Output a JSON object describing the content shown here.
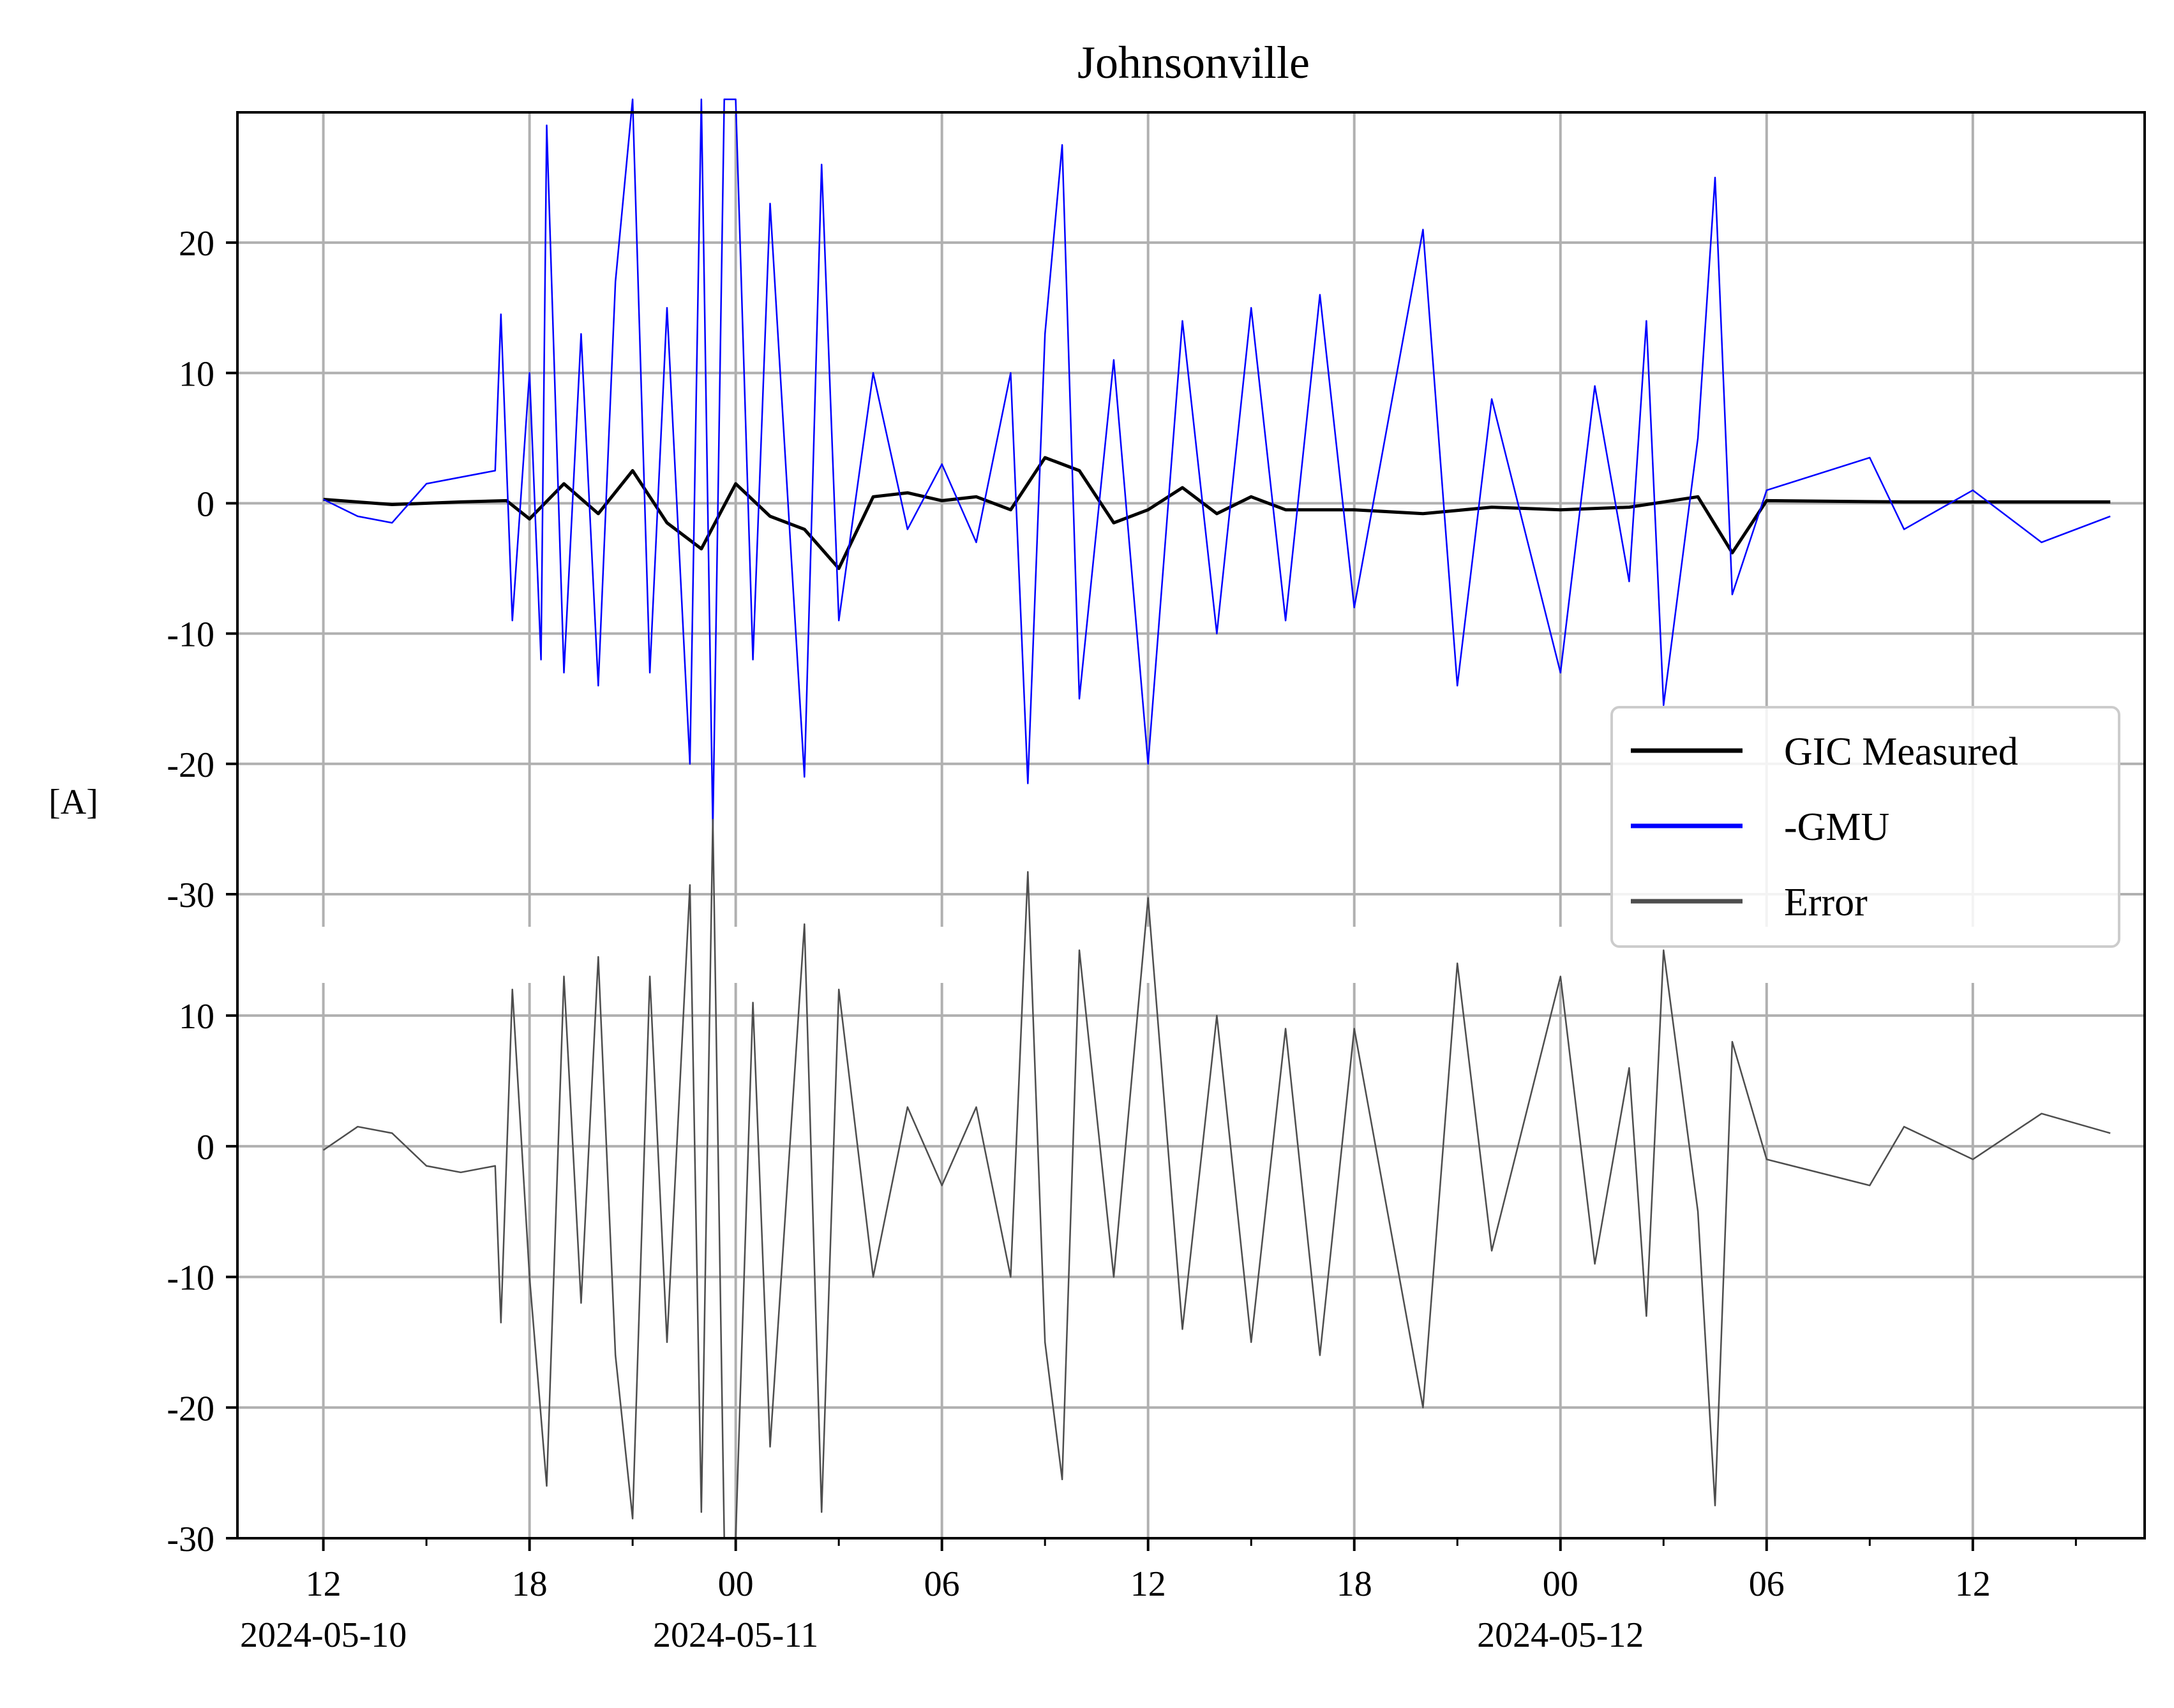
{
  "chart_data": {
    "type": "line",
    "title": "Johnsonville",
    "ylabel": "[A]",
    "xlabel": "",
    "x_range": [
      "2024-05-10T09:30",
      "2024-05-12T17:00"
    ],
    "x_ticks": [
      {
        "t": "2024-05-10T12:00",
        "label": "12",
        "date": "2024-05-10"
      },
      {
        "t": "2024-05-10T18:00",
        "label": "18",
        "date": ""
      },
      {
        "t": "2024-05-11T00:00",
        "label": "00",
        "date": "2024-05-11"
      },
      {
        "t": "2024-05-11T06:00",
        "label": "06",
        "date": ""
      },
      {
        "t": "2024-05-11T12:00",
        "label": "12",
        "date": ""
      },
      {
        "t": "2024-05-11T18:00",
        "label": "18",
        "date": ""
      },
      {
        "t": "2024-05-12T00:00",
        "label": "00",
        "date": "2024-05-12"
      },
      {
        "t": "2024-05-12T06:00",
        "label": "06",
        "date": ""
      },
      {
        "t": "2024-05-12T12:00",
        "label": "12",
        "date": ""
      }
    ],
    "minor_ticks_hours": 3,
    "panels": [
      {
        "name": "upper",
        "ylim": [
          -32.5,
          30
        ],
        "yticks": [
          20,
          10,
          0,
          -10,
          -20,
          -30
        ],
        "ytick_labels": [
          "20",
          "10",
          "0",
          "-10",
          "-20",
          "-30"
        ],
        "series": [
          {
            "name": "GIC Measured",
            "color": "#000000",
            "points": [
              [
                "2024-05-10T12:00",
                0.3
              ],
              [
                "2024-05-10T14:00",
                -0.1
              ],
              [
                "2024-05-10T16:00",
                0.1
              ],
              [
                "2024-05-10T17:20",
                0.2
              ],
              [
                "2024-05-10T18:00",
                -1.2
              ],
              [
                "2024-05-10T19:00",
                1.5
              ],
              [
                "2024-05-10T20:00",
                -0.8
              ],
              [
                "2024-05-10T21:00",
                2.5
              ],
              [
                "2024-05-10T22:00",
                -1.5
              ],
              [
                "2024-05-10T23:00",
                -3.5
              ],
              [
                "2024-05-11T00:00",
                1.5
              ],
              [
                "2024-05-11T01:00",
                -1.0
              ],
              [
                "2024-05-11T02:00",
                -2.0
              ],
              [
                "2024-05-11T03:00",
                -5.0
              ],
              [
                "2024-05-11T04:00",
                0.5
              ],
              [
                "2024-05-11T05:00",
                0.8
              ],
              [
                "2024-05-11T06:00",
                0.2
              ],
              [
                "2024-05-11T07:00",
                0.5
              ],
              [
                "2024-05-11T08:00",
                -0.5
              ],
              [
                "2024-05-11T09:00",
                3.5
              ],
              [
                "2024-05-11T10:00",
                2.5
              ],
              [
                "2024-05-11T11:00",
                -1.5
              ],
              [
                "2024-05-11T12:00",
                -0.5
              ],
              [
                "2024-05-11T13:00",
                1.2
              ],
              [
                "2024-05-11T14:00",
                -0.8
              ],
              [
                "2024-05-11T15:00",
                0.5
              ],
              [
                "2024-05-11T16:00",
                -0.5
              ],
              [
                "2024-05-11T18:00",
                -0.5
              ],
              [
                "2024-05-11T20:00",
                -0.8
              ],
              [
                "2024-05-11T22:00",
                -0.3
              ],
              [
                "2024-05-12T00:00",
                -0.5
              ],
              [
                "2024-05-12T02:00",
                -0.3
              ],
              [
                "2024-05-12T04:00",
                0.5
              ],
              [
                "2024-05-12T05:00",
                -3.8
              ],
              [
                "2024-05-12T06:00",
                0.2
              ],
              [
                "2024-05-12T10:00",
                0.1
              ],
              [
                "2024-05-12T14:00",
                0.1
              ],
              [
                "2024-05-12T16:00",
                0.1
              ]
            ]
          },
          {
            "name": "-GMU",
            "color": "#0000ff",
            "points": [
              [
                "2024-05-10T12:00",
                0.3
              ],
              [
                "2024-05-10T13:00",
                -1.0
              ],
              [
                "2024-05-10T14:00",
                -1.5
              ],
              [
                "2024-05-10T15:00",
                1.5
              ],
              [
                "2024-05-10T16:00",
                2.0
              ],
              [
                "2024-05-10T17:00",
                2.5
              ],
              [
                "2024-05-10T17:10",
                14.5
              ],
              [
                "2024-05-10T17:30",
                -9.0
              ],
              [
                "2024-05-10T18:00",
                10.0
              ],
              [
                "2024-05-10T18:20",
                -12.0
              ],
              [
                "2024-05-10T18:30",
                29.0
              ],
              [
                "2024-05-10T19:00",
                -13.0
              ],
              [
                "2024-05-10T19:30",
                13.0
              ],
              [
                "2024-05-10T20:00",
                -14.0
              ],
              [
                "2024-05-10T20:30",
                17.0
              ],
              [
                "2024-05-10T21:00",
                31.0
              ],
              [
                "2024-05-10T21:30",
                -13.0
              ],
              [
                "2024-05-10T22:00",
                15.0
              ],
              [
                "2024-05-10T22:40",
                -20.0
              ],
              [
                "2024-05-10T23:00",
                31.0
              ],
              [
                "2024-05-10T23:20",
                -25.0
              ],
              [
                "2024-05-10T23:40",
                31.0
              ],
              [
                "2024-05-11T00:00",
                31.0
              ],
              [
                "2024-05-11T00:30",
                -12.0
              ],
              [
                "2024-05-11T01:00",
                23.0
              ],
              [
                "2024-05-11T02:00",
                -21.0
              ],
              [
                "2024-05-11T02:30",
                26.0
              ],
              [
                "2024-05-11T03:00",
                -9.0
              ],
              [
                "2024-05-11T04:00",
                10.0
              ],
              [
                "2024-05-11T05:00",
                -2.0
              ],
              [
                "2024-05-11T06:00",
                3.0
              ],
              [
                "2024-05-11T07:00",
                -3.0
              ],
              [
                "2024-05-11T08:00",
                10.0
              ],
              [
                "2024-05-11T08:30",
                -21.5
              ],
              [
                "2024-05-11T09:00",
                13.0
              ],
              [
                "2024-05-11T09:30",
                27.5
              ],
              [
                "2024-05-11T10:00",
                -15.0
              ],
              [
                "2024-05-11T11:00",
                11.0
              ],
              [
                "2024-05-11T12:00",
                -20.0
              ],
              [
                "2024-05-11T13:00",
                14.0
              ],
              [
                "2024-05-11T14:00",
                -10.0
              ],
              [
                "2024-05-11T15:00",
                15.0
              ],
              [
                "2024-05-11T16:00",
                -9.0
              ],
              [
                "2024-05-11T17:00",
                16.0
              ],
              [
                "2024-05-11T18:00",
                -8.0
              ],
              [
                "2024-05-11T20:00",
                21.0
              ],
              [
                "2024-05-11T21:00",
                -14.0
              ],
              [
                "2024-05-11T22:00",
                8.0
              ],
              [
                "2024-05-12T00:00",
                -13.0
              ],
              [
                "2024-05-12T01:00",
                9.0
              ],
              [
                "2024-05-12T02:00",
                -6.0
              ],
              [
                "2024-05-12T02:30",
                14.0
              ],
              [
                "2024-05-12T03:00",
                -15.5
              ],
              [
                "2024-05-12T04:00",
                5.0
              ],
              [
                "2024-05-12T04:30",
                25.0
              ],
              [
                "2024-05-12T05:00",
                -7.0
              ],
              [
                "2024-05-12T06:00",
                1.0
              ],
              [
                "2024-05-12T09:00",
                3.5
              ],
              [
                "2024-05-12T10:00",
                -2.0
              ],
              [
                "2024-05-12T12:00",
                1.0
              ],
              [
                "2024-05-12T14:00",
                -3.0
              ],
              [
                "2024-05-12T16:00",
                -1.0
              ]
            ]
          }
        ]
      },
      {
        "name": "lower",
        "ylim": [
          -30,
          12.5
        ],
        "yticks": [
          10,
          0,
          -10,
          -20,
          -30
        ],
        "ytick_labels": [
          "10",
          "0",
          "-10",
          "-20",
          "-30"
        ],
        "series": [
          {
            "name": "Error",
            "color": "#4d4d4d",
            "points": [
              [
                "2024-05-10T12:00",
                -0.3
              ],
              [
                "2024-05-10T13:00",
                1.5
              ],
              [
                "2024-05-10T14:00",
                1.0
              ],
              [
                "2024-05-10T15:00",
                -1.5
              ],
              [
                "2024-05-10T16:00",
                -2.0
              ],
              [
                "2024-05-10T17:00",
                -1.5
              ],
              [
                "2024-05-10T17:10",
                -13.5
              ],
              [
                "2024-05-10T17:30",
                12.0
              ],
              [
                "2024-05-10T18:00",
                -10.0
              ],
              [
                "2024-05-10T18:30",
                -26.0
              ],
              [
                "2024-05-10T19:00",
                13.0
              ],
              [
                "2024-05-10T19:30",
                -12.0
              ],
              [
                "2024-05-10T20:00",
                14.5
              ],
              [
                "2024-05-10T20:30",
                -16.0
              ],
              [
                "2024-05-10T21:00",
                -28.5
              ],
              [
                "2024-05-10T21:30",
                13.0
              ],
              [
                "2024-05-10T22:00",
                -15.0
              ],
              [
                "2024-05-10T22:40",
                20.0
              ],
              [
                "2024-05-10T23:00",
                -28.0
              ],
              [
                "2024-05-10T23:20",
                25.0
              ],
              [
                "2024-05-10T23:40",
                -30.0
              ],
              [
                "2024-05-11T00:00",
                -30.0
              ],
              [
                "2024-05-11T00:30",
                11.0
              ],
              [
                "2024-05-11T01:00",
                -23.0
              ],
              [
                "2024-05-11T02:00",
                17.0
              ],
              [
                "2024-05-11T02:30",
                -28.0
              ],
              [
                "2024-05-11T03:00",
                12.0
              ],
              [
                "2024-05-11T04:00",
                -10.0
              ],
              [
                "2024-05-11T05:00",
                3.0
              ],
              [
                "2024-05-11T06:00",
                -3.0
              ],
              [
                "2024-05-11T07:00",
                3.0
              ],
              [
                "2024-05-11T08:00",
                -10.0
              ],
              [
                "2024-05-11T08:30",
                21.0
              ],
              [
                "2024-05-11T09:00",
                -15.0
              ],
              [
                "2024-05-11T09:30",
                -25.5
              ],
              [
                "2024-05-11T10:00",
                15.0
              ],
              [
                "2024-05-11T11:00",
                -10.0
              ],
              [
                "2024-05-11T12:00",
                19.0
              ],
              [
                "2024-05-11T13:00",
                -14.0
              ],
              [
                "2024-05-11T14:00",
                10.0
              ],
              [
                "2024-05-11T15:00",
                -15.0
              ],
              [
                "2024-05-11T16:00",
                9.0
              ],
              [
                "2024-05-11T17:00",
                -16.0
              ],
              [
                "2024-05-11T18:00",
                9.0
              ],
              [
                "2024-05-11T20:00",
                -20.0
              ],
              [
                "2024-05-11T21:00",
                14.0
              ],
              [
                "2024-05-11T22:00",
                -8.0
              ],
              [
                "2024-05-12T00:00",
                13.0
              ],
              [
                "2024-05-12T01:00",
                -9.0
              ],
              [
                "2024-05-12T02:00",
                6.0
              ],
              [
                "2024-05-12T02:30",
                -13.0
              ],
              [
                "2024-05-12T03:00",
                15.0
              ],
              [
                "2024-05-12T04:00",
                -5.0
              ],
              [
                "2024-05-12T04:30",
                -27.5
              ],
              [
                "2024-05-12T05:00",
                8.0
              ],
              [
                "2024-05-12T06:00",
                -1.0
              ],
              [
                "2024-05-12T09:00",
                -3.0
              ],
              [
                "2024-05-12T10:00",
                1.5
              ],
              [
                "2024-05-12T12:00",
                -1.0
              ],
              [
                "2024-05-12T14:00",
                2.5
              ],
              [
                "2024-05-12T16:00",
                1.0
              ]
            ]
          }
        ]
      }
    ],
    "legend": {
      "placement": "right",
      "entries": [
        {
          "label": "GIC Measured",
          "color": "#000000"
        },
        {
          "label": "-GMU",
          "color": "#0000ff"
        },
        {
          "label": "Error",
          "color": "#4d4d4d"
        }
      ]
    },
    "grid": true
  }
}
